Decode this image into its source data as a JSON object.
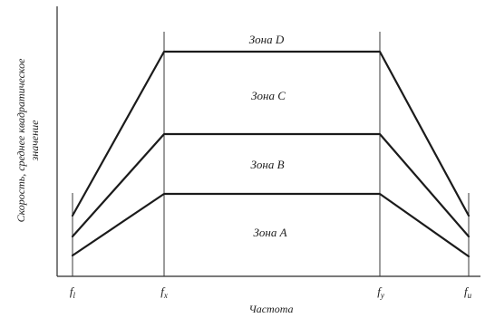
{
  "diagram": {
    "zones": [
      {
        "id": "D",
        "label": "Зона D"
      },
      {
        "id": "C",
        "label": "Зона C"
      },
      {
        "id": "B",
        "label": "Зона B"
      },
      {
        "id": "A",
        "label": "Зона A"
      }
    ],
    "ticks": {
      "f1": {
        "main": "f",
        "sub": "l"
      },
      "fx": {
        "main": "f",
        "sub": "x"
      },
      "fy": {
        "main": "f",
        "sub": "y"
      },
      "fu": {
        "main": "f",
        "sub": "u"
      }
    },
    "x_axis_title": "Частота",
    "y_axis_title": {
      "line1": "Скорость, среднее квадратическое",
      "line2": "значение"
    }
  }
}
